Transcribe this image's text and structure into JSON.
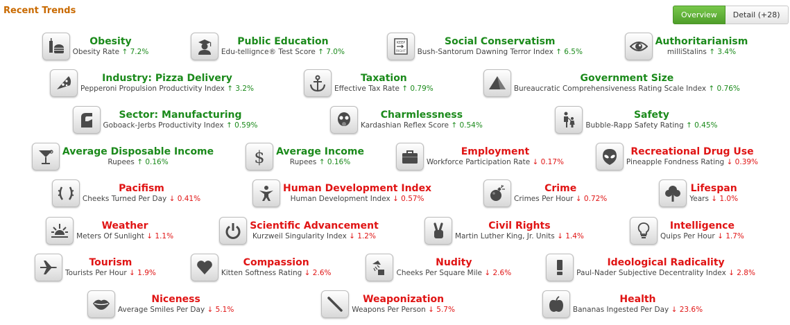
{
  "title": "Recent Trends",
  "tabs": {
    "overview": "Overview",
    "detail": "Detail (+28)"
  },
  "rows": [
    [
      {
        "name": "Obesity",
        "metric": "Obesity Rate",
        "change": "↑ 7.2%",
        "dir": "up",
        "icon": "burger-icon"
      },
      {
        "name": "Public Education",
        "metric": "Edu-tellignce® Test Score",
        "change": "↑ 7.0%",
        "dir": "up",
        "icon": "student-icon"
      },
      {
        "name": "Social Conservatism",
        "metric": "Bush-Santorum Dawning Terror Index",
        "change": "↑ 6.5%",
        "dir": "up",
        "icon": "keep-right-sign-icon"
      },
      {
        "name": "Authoritarianism",
        "metric": "milliStalins",
        "change": "↑ 3.4%",
        "dir": "up",
        "icon": "eye-icon"
      }
    ],
    [
      {
        "name": "Industry: Pizza Delivery",
        "metric": "Pepperoni Propulsion Productivity Index",
        "change": "↑ 3.2%",
        "dir": "up",
        "icon": "pizza-icon"
      },
      {
        "name": "Taxation",
        "metric": "Effective Tax Rate",
        "change": "↑ 0.79%",
        "dir": "up",
        "icon": "anchor-icon"
      },
      {
        "name": "Government Size",
        "metric": "Bureaucratic Comprehensiveness Rating Scale Index",
        "change": "↑ 0.76%",
        "dir": "up",
        "icon": "pyramid-icon"
      }
    ],
    [
      {
        "name": "Sector: Manufacturing",
        "metric": "Goboack-Jerbs Productivity Index",
        "change": "↑ 0.59%",
        "dir": "up",
        "icon": "factory-icon"
      },
      {
        "name": "Charmlessness",
        "metric": "Kardashian Reflex Score",
        "change": "↑ 0.54%",
        "dir": "up",
        "icon": "gas-mask-icon"
      },
      {
        "name": "Safety",
        "metric": "Bubble-Rapp Safety Rating",
        "change": "↑ 0.45%",
        "dir": "up",
        "icon": "family-icon"
      }
    ],
    [
      {
        "name": "Average Disposable Income",
        "metric": "Rupees",
        "change": "↑ 0.16%",
        "dir": "up",
        "icon": "cocktail-icon"
      },
      {
        "name": "Average Income",
        "metric": "Rupees",
        "change": "↑ 0.16%",
        "dir": "up",
        "icon": "dollar-icon"
      },
      {
        "name": "Employment",
        "metric": "Workforce Participation Rate",
        "change": "↓ 0.17%",
        "dir": "down",
        "icon": "briefcase-icon"
      },
      {
        "name": "Recreational Drug Use",
        "metric": "Pineapple Fondness Rating",
        "change": "↓ 0.39%",
        "dir": "down",
        "icon": "alien-icon"
      }
    ],
    [
      {
        "name": "Pacifism",
        "metric": "Cheeks Turned Per Day",
        "change": "↓ 0.41%",
        "dir": "down",
        "icon": "laurel-icon"
      },
      {
        "name": "Human Development Index",
        "metric": "Human Development Index",
        "change": "↓ 0.57%",
        "dir": "down",
        "icon": "person-icon"
      },
      {
        "name": "Crime",
        "metric": "Crimes Per Hour",
        "change": "↓ 0.72%",
        "dir": "down",
        "icon": "bomb-icon"
      },
      {
        "name": "Lifespan",
        "metric": "Years",
        "change": "↓ 1.0%",
        "dir": "down",
        "icon": "tree-icon"
      }
    ],
    [
      {
        "name": "Weather",
        "metric": "Meters Of Sunlight",
        "change": "↓ 1.1%",
        "dir": "down",
        "icon": "sunrise-icon"
      },
      {
        "name": "Scientific Advancement",
        "metric": "Kurzweil Singularity Index",
        "change": "↓ 1.2%",
        "dir": "down",
        "icon": "power-icon"
      },
      {
        "name": "Civil Rights",
        "metric": "Martin Luther King, Jr. Units",
        "change": "↓ 1.4%",
        "dir": "down",
        "icon": "peace-hand-icon"
      },
      {
        "name": "Intelligence",
        "metric": "Quips Per Hour",
        "change": "↓ 1.7%",
        "dir": "down",
        "icon": "lightbulb-icon"
      }
    ],
    [
      {
        "name": "Tourism",
        "metric": "Tourists Per Hour",
        "change": "↓ 1.9%",
        "dir": "down",
        "icon": "airplane-icon"
      },
      {
        "name": "Compassion",
        "metric": "Kitten Softness Rating",
        "change": "↓ 2.6%",
        "dir": "down",
        "icon": "heart-icon"
      },
      {
        "name": "Nudity",
        "metric": "Cheeks Per Square Mile",
        "change": "↓ 2.6%",
        "dir": "down",
        "icon": "shower-icon"
      },
      {
        "name": "Ideological Radicality",
        "metric": "Paul-Nader Subjective Decentrality Index",
        "change": "↓ 2.8%",
        "dir": "down",
        "icon": "exclamation-icon"
      }
    ],
    [
      {
        "name": "Niceness",
        "metric": "Average Smiles Per Day",
        "change": "↓ 5.1%",
        "dir": "down",
        "icon": "lips-icon"
      },
      {
        "name": "Weaponization",
        "metric": "Weapons Per Person",
        "change": "↓ 5.7%",
        "dir": "down",
        "icon": "baton-icon"
      },
      {
        "name": "Health",
        "metric": "Bananas Ingested Per Day",
        "change": "↓ 23.6%",
        "dir": "down",
        "icon": "apple-icon"
      }
    ]
  ]
}
